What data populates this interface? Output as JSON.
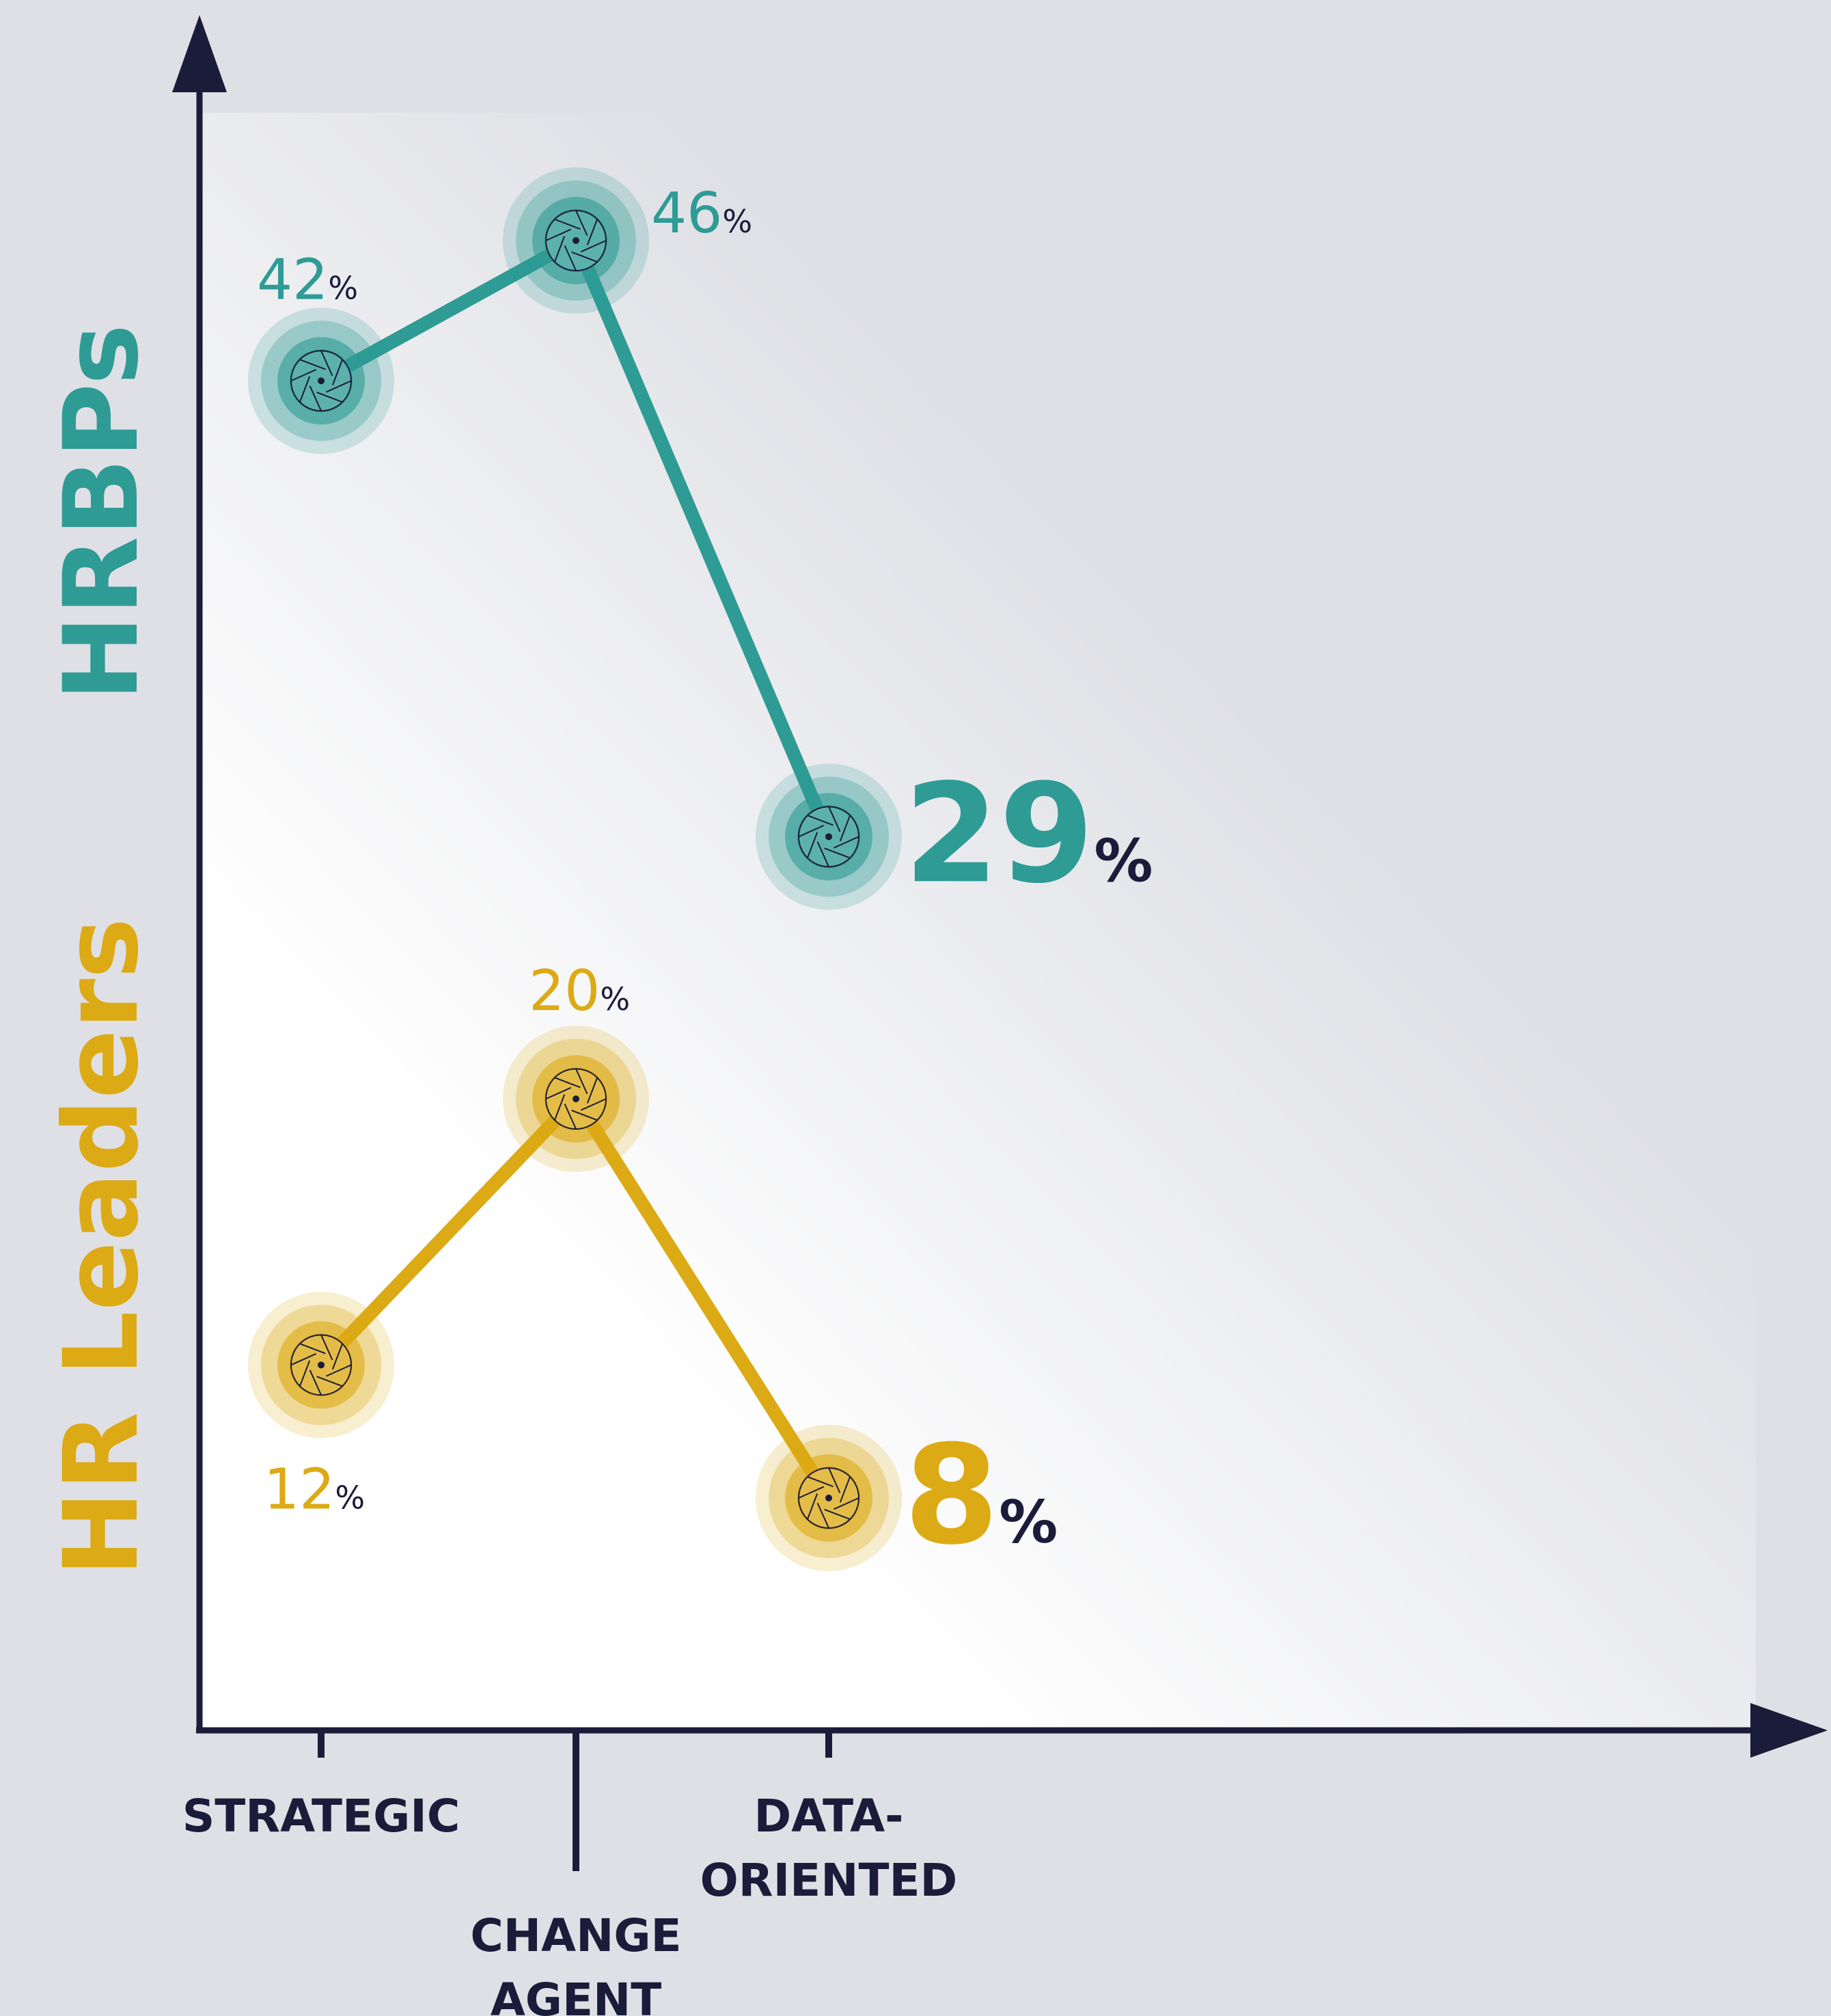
{
  "colors": {
    "background": "#dfe0e5",
    "axis": "#1b1c3a",
    "hrbps": "#2e9b95",
    "hr_leaders": "#dcaa14"
  },
  "chart_data": {
    "type": "line",
    "categories": [
      "STRATEGIC",
      "CHANGE AGENT",
      "DATA-ORIENTED"
    ],
    "category_lines": [
      [
        "STRATEGIC"
      ],
      [
        "CHANGE",
        "AGENT"
      ],
      [
        "DATA-",
        "ORIENTED"
      ]
    ],
    "series": [
      {
        "name": "HRBPs",
        "values": [
          42,
          46,
          29
        ],
        "labels": [
          "42",
          "46",
          "29"
        ],
        "color": "#2e9b95"
      },
      {
        "name": "HR Leaders",
        "values": [
          12,
          20,
          8
        ],
        "labels": [
          "12",
          "20",
          "8"
        ],
        "color": "#dcaa14"
      }
    ],
    "unit": "%",
    "highlight_last_point": true,
    "legend": "left-side vertical titles",
    "grid": false,
    "marker": "aperture-icon"
  }
}
